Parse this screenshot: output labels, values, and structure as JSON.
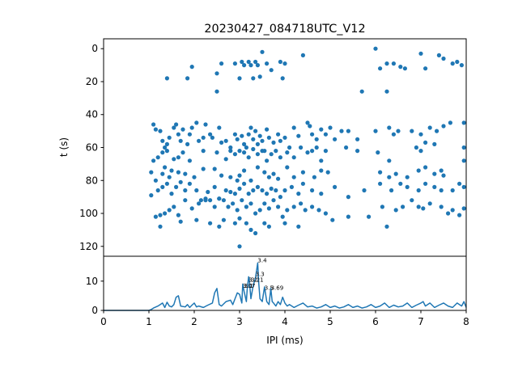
{
  "chart_data": [
    {
      "type": "scatter",
      "title": "20230427_084718UTC_V12",
      "xlabel": "",
      "ylabel": "t (s)",
      "xlim": [
        0,
        8
      ],
      "ylim": [
        126,
        -6
      ],
      "y_inverted": true,
      "yticks": [
        0,
        20,
        40,
        60,
        80,
        100,
        120
      ],
      "color": "#1f77b4",
      "points": [
        [
          1.4,
          18
        ],
        [
          1.85,
          18
        ],
        [
          1.95,
          11
        ],
        [
          2.5,
          15
        ],
        [
          2.5,
          26
        ],
        [
          2.6,
          9
        ],
        [
          2.9,
          9
        ],
        [
          3.0,
          18
        ],
        [
          3.05,
          8
        ],
        [
          3.1,
          10
        ],
        [
          3.2,
          8
        ],
        [
          3.25,
          10
        ],
        [
          3.3,
          18
        ],
        [
          3.35,
          8
        ],
        [
          3.4,
          10
        ],
        [
          3.45,
          17
        ],
        [
          3.5,
          2
        ],
        [
          3.6,
          9
        ],
        [
          3.7,
          13
        ],
        [
          3.9,
          8
        ],
        [
          3.95,
          18
        ],
        [
          4.0,
          9
        ],
        [
          4.4,
          4
        ],
        [
          5.7,
          26
        ],
        [
          6.0,
          0
        ],
        [
          6.1,
          12
        ],
        [
          6.25,
          26
        ],
        [
          6.25,
          9
        ],
        [
          6.4,
          9
        ],
        [
          6.55,
          11
        ],
        [
          6.65,
          12
        ],
        [
          7.0,
          3
        ],
        [
          7.1,
          12
        ],
        [
          7.4,
          4
        ],
        [
          7.5,
          6
        ],
        [
          7.7,
          9
        ],
        [
          7.8,
          8
        ],
        [
          7.9,
          10
        ],
        [
          1.1,
          46
        ],
        [
          1.15,
          49
        ],
        [
          1.25,
          50
        ],
        [
          1.3,
          56
        ],
        [
          1.35,
          60
        ],
        [
          1.4,
          58
        ],
        [
          1.45,
          54
        ],
        [
          1.55,
          48
        ],
        [
          1.6,
          46
        ],
        [
          1.65,
          52
        ],
        [
          1.7,
          56
        ],
        [
          1.75,
          49
        ],
        [
          1.85,
          58
        ],
        [
          1.9,
          52
        ],
        [
          1.95,
          48
        ],
        [
          2.05,
          45
        ],
        [
          2.1,
          56
        ],
        [
          2.2,
          54
        ],
        [
          2.25,
          46
        ],
        [
          2.35,
          52
        ],
        [
          2.4,
          54
        ],
        [
          2.55,
          48
        ],
        [
          2.6,
          57
        ],
        [
          2.7,
          56
        ],
        [
          2.8,
          60
        ],
        [
          2.9,
          52
        ],
        [
          2.95,
          55
        ],
        [
          3.05,
          53
        ],
        [
          3.1,
          58
        ],
        [
          3.15,
          60
        ],
        [
          3.2,
          52
        ],
        [
          3.25,
          48
        ],
        [
          3.3,
          55
        ],
        [
          3.35,
          50
        ],
        [
          3.4,
          58
        ],
        [
          3.45,
          53
        ],
        [
          3.5,
          56
        ],
        [
          3.55,
          62
        ],
        [
          3.6,
          49
        ],
        [
          3.65,
          54
        ],
        [
          3.75,
          57
        ],
        [
          3.85,
          52
        ],
        [
          3.9,
          56
        ],
        [
          4.0,
          54
        ],
        [
          4.1,
          60
        ],
        [
          4.2,
          48
        ],
        [
          4.3,
          53
        ],
        [
          4.5,
          45
        ],
        [
          4.55,
          47
        ],
        [
          4.6,
          52
        ],
        [
          4.7,
          55
        ],
        [
          4.8,
          49
        ],
        [
          4.9,
          52
        ],
        [
          5.0,
          48
        ],
        [
          5.1,
          55
        ],
        [
          5.25,
          50
        ],
        [
          5.4,
          50
        ],
        [
          5.6,
          55
        ],
        [
          6.0,
          50
        ],
        [
          6.3,
          48
        ],
        [
          6.4,
          52
        ],
        [
          6.5,
          50
        ],
        [
          6.8,
          50
        ],
        [
          7.0,
          52
        ],
        [
          7.2,
          48
        ],
        [
          7.35,
          50
        ],
        [
          7.5,
          47
        ],
        [
          7.65,
          45
        ],
        [
          7.95,
          45
        ],
        [
          1.1,
          68
        ],
        [
          1.2,
          66
        ],
        [
          1.3,
          63
        ],
        [
          1.4,
          62
        ],
        [
          1.55,
          67
        ],
        [
          1.65,
          66
        ],
        [
          1.75,
          63
        ],
        [
          1.9,
          68
        ],
        [
          2.2,
          62
        ],
        [
          2.5,
          63
        ],
        [
          2.7,
          67
        ],
        [
          2.8,
          62
        ],
        [
          2.9,
          64
        ],
        [
          3.0,
          62
        ],
        [
          3.1,
          63
        ],
        [
          3.2,
          66
        ],
        [
          3.3,
          61
        ],
        [
          3.4,
          64
        ],
        [
          3.5,
          62
        ],
        [
          3.6,
          68
        ],
        [
          3.7,
          64
        ],
        [
          3.8,
          62
        ],
        [
          3.9,
          66
        ],
        [
          4.05,
          63
        ],
        [
          4.2,
          66
        ],
        [
          4.35,
          60
        ],
        [
          4.5,
          63
        ],
        [
          4.6,
          62
        ],
        [
          4.7,
          60
        ],
        [
          4.8,
          68
        ],
        [
          4.9,
          62
        ],
        [
          5.35,
          60
        ],
        [
          5.6,
          62
        ],
        [
          6.05,
          63
        ],
        [
          6.3,
          68
        ],
        [
          6.9,
          60
        ],
        [
          7.0,
          62
        ],
        [
          7.1,
          57
        ],
        [
          7.3,
          58
        ],
        [
          7.95,
          60
        ],
        [
          1.05,
          75
        ],
        [
          1.15,
          80
        ],
        [
          1.3,
          76
        ],
        [
          1.35,
          72
        ],
        [
          1.45,
          78
        ],
        [
          1.5,
          74
        ],
        [
          1.65,
          75
        ],
        [
          1.8,
          76
        ],
        [
          2.0,
          78
        ],
        [
          2.2,
          73
        ],
        [
          2.45,
          73
        ],
        [
          2.6,
          77
        ],
        [
          2.8,
          78
        ],
        [
          2.95,
          80
        ],
        [
          3.0,
          77
        ],
        [
          3.1,
          74
        ],
        [
          3.25,
          80
        ],
        [
          3.4,
          72
        ],
        [
          3.55,
          75
        ],
        [
          3.65,
          78
        ],
        [
          3.75,
          76
        ],
        [
          3.85,
          79
        ],
        [
          4.05,
          72
        ],
        [
          4.2,
          78
        ],
        [
          4.4,
          75
        ],
        [
          4.65,
          78
        ],
        [
          4.8,
          74
        ],
        [
          4.95,
          75
        ],
        [
          6.1,
          75
        ],
        [
          6.3,
          78
        ],
        [
          6.45,
          76
        ],
        [
          6.7,
          78
        ],
        [
          6.95,
          74
        ],
        [
          7.1,
          72
        ],
        [
          7.3,
          76
        ],
        [
          7.45,
          74
        ],
        [
          7.5,
          77
        ],
        [
          7.95,
          68
        ],
        [
          1.05,
          89
        ],
        [
          1.2,
          86
        ],
        [
          1.3,
          84
        ],
        [
          1.4,
          82
        ],
        [
          1.5,
          88
        ],
        [
          1.6,
          84
        ],
        [
          1.7,
          81
        ],
        [
          1.8,
          86
        ],
        [
          1.9,
          82
        ],
        [
          2.05,
          86
        ],
        [
          2.15,
          92
        ],
        [
          2.25,
          91
        ],
        [
          2.3,
          87
        ],
        [
          2.45,
          84
        ],
        [
          2.55,
          91
        ],
        [
          2.7,
          86
        ],
        [
          2.8,
          87
        ],
        [
          2.9,
          88
        ],
        [
          3.0,
          85
        ],
        [
          3.1,
          82
        ],
        [
          3.2,
          88
        ],
        [
          3.3,
          86
        ],
        [
          3.4,
          84
        ],
        [
          3.5,
          86
        ],
        [
          3.6,
          88
        ],
        [
          3.7,
          85
        ],
        [
          3.8,
          86
        ],
        [
          3.9,
          90
        ],
        [
          4.0,
          86
        ],
        [
          4.15,
          84
        ],
        [
          4.3,
          88
        ],
        [
          4.4,
          82
        ],
        [
          4.6,
          86
        ],
        [
          4.8,
          88
        ],
        [
          5.1,
          84
        ],
        [
          5.4,
          90
        ],
        [
          5.75,
          86
        ],
        [
          6.1,
          82
        ],
        [
          6.35,
          86
        ],
        [
          6.55,
          82
        ],
        [
          6.7,
          84
        ],
        [
          6.95,
          86
        ],
        [
          7.1,
          82
        ],
        [
          7.3,
          84
        ],
        [
          7.45,
          86
        ],
        [
          7.7,
          86
        ],
        [
          7.85,
          82
        ],
        [
          7.95,
          84
        ],
        [
          1.15,
          102
        ],
        [
          1.25,
          101
        ],
        [
          1.35,
          100
        ],
        [
          1.45,
          98
        ],
        [
          1.55,
          96
        ],
        [
          1.65,
          101
        ],
        [
          1.8,
          92
        ],
        [
          1.95,
          97
        ],
        [
          2.1,
          94
        ],
        [
          2.25,
          92
        ],
        [
          2.35,
          92
        ],
        [
          2.45,
          96
        ],
        [
          2.55,
          91
        ],
        [
          2.65,
          92
        ],
        [
          2.75,
          96
        ],
        [
          2.85,
          94
        ],
        [
          2.95,
          98
        ],
        [
          3.0,
          103
        ],
        [
          3.05,
          92
        ],
        [
          3.15,
          96
        ],
        [
          3.25,
          94
        ],
        [
          3.35,
          100
        ],
        [
          3.45,
          98
        ],
        [
          3.55,
          94
        ],
        [
          3.65,
          97
        ],
        [
          3.75,
          92
        ],
        [
          3.85,
          96
        ],
        [
          3.95,
          102
        ],
        [
          4.05,
          98
        ],
        [
          4.2,
          96
        ],
        [
          4.35,
          94
        ],
        [
          4.45,
          98
        ],
        [
          4.6,
          96
        ],
        [
          4.75,
          98
        ],
        [
          4.9,
          100
        ],
        [
          5.05,
          104
        ],
        [
          5.4,
          102
        ],
        [
          5.85,
          102
        ],
        [
          6.15,
          96
        ],
        [
          6.45,
          98
        ],
        [
          6.6,
          96
        ],
        [
          6.8,
          92
        ],
        [
          6.95,
          96
        ],
        [
          7.05,
          97
        ],
        [
          7.2,
          94
        ],
        [
          7.45,
          96
        ],
        [
          7.6,
          100
        ],
        [
          7.7,
          98
        ],
        [
          7.85,
          101
        ],
        [
          7.95,
          97
        ],
        [
          1.25,
          108
        ],
        [
          1.7,
          105
        ],
        [
          2.05,
          104
        ],
        [
          2.35,
          106
        ],
        [
          2.55,
          108
        ],
        [
          2.65,
          104
        ],
        [
          2.9,
          106
        ],
        [
          3.15,
          106
        ],
        [
          3.25,
          110
        ],
        [
          3.35,
          112
        ],
        [
          3.55,
          106
        ],
        [
          3.65,
          108
        ],
        [
          4.0,
          106
        ],
        [
          4.3,
          108
        ],
        [
          6.25,
          108
        ],
        [
          3.0,
          120
        ]
      ]
    },
    {
      "type": "line",
      "title": "",
      "xlabel": "IPI (ms)",
      "ylabel": "",
      "xlim": [
        0,
        8
      ],
      "ylim": [
        0,
        18.5
      ],
      "xticks": [
        0,
        1,
        2,
        3,
        4,
        5,
        6,
        7,
        8
      ],
      "yticks": [
        0,
        10
      ],
      "color": "#1f77b4",
      "series": [
        {
          "x": [
            0,
            1.0,
            1.05,
            1.1,
            1.2,
            1.3,
            1.35,
            1.4,
            1.45,
            1.5,
            1.55,
            1.6,
            1.65,
            1.7,
            1.8,
            1.85,
            1.9,
            1.95,
            2.0,
            2.05,
            2.1,
            2.2,
            2.3,
            2.4,
            2.45,
            2.5,
            2.55,
            2.6,
            2.7,
            2.8,
            2.85,
            2.9,
            2.95,
            3.0,
            3.05,
            3.07,
            3.1,
            3.15,
            3.17,
            3.2,
            3.21,
            3.25,
            3.3,
            3.35,
            3.4,
            3.42,
            3.45,
            3.5,
            3.55,
            3.6,
            3.65,
            3.69,
            3.72,
            3.75,
            3.8,
            3.85,
            3.9,
            3.95,
            4.0,
            4.05,
            4.1,
            4.2,
            4.3,
            4.4,
            4.5,
            4.6,
            4.7,
            4.8,
            4.9,
            5.0,
            5.1,
            5.2,
            5.3,
            5.4,
            5.5,
            5.6,
            5.7,
            5.8,
            5.9,
            6.0,
            6.1,
            6.2,
            6.3,
            6.4,
            6.5,
            6.6,
            6.7,
            6.8,
            6.9,
            7.0,
            7.05,
            7.1,
            7.2,
            7.3,
            7.4,
            7.5,
            7.6,
            7.7,
            7.8,
            7.9,
            7.95,
            8.0
          ],
          "y": [
            0,
            0,
            0.3,
            0.8,
            1.5,
            2.5,
            1.0,
            2.8,
            1.5,
            1.2,
            2.0,
            4.5,
            5.0,
            1.5,
            1.2,
            2.0,
            1.0,
            1.8,
            2.5,
            1.2,
            1.5,
            1.0,
            1.8,
            2.5,
            6.0,
            7.5,
            2.0,
            1.5,
            3.0,
            3.5,
            2.0,
            4.0,
            6.0,
            5.5,
            2.5,
            9.0,
            6.5,
            3.0,
            7.5,
            11.5,
            11.0,
            4.0,
            8.5,
            11.0,
            16.2,
            10.0,
            4.0,
            3.0,
            8.0,
            3.0,
            2.0,
            7.5,
            3.0,
            2.5,
            1.5,
            3.0,
            2.0,
            4.5,
            2.5,
            1.5,
            2.0,
            1.0,
            1.8,
            2.5,
            1.2,
            1.5,
            0.8,
            1.2,
            2.0,
            1.0,
            1.5,
            0.8,
            1.2,
            2.0,
            1.0,
            1.5,
            0.8,
            1.2,
            2.0,
            1.0,
            1.5,
            2.5,
            1.0,
            1.8,
            1.2,
            1.5,
            2.5,
            1.0,
            1.8,
            2.5,
            3.0,
            1.5,
            2.5,
            1.0,
            1.8,
            2.5,
            1.5,
            1.0,
            2.5,
            1.5,
            3.0,
            1.0
          ]
        }
      ],
      "annotations": [
        {
          "text": "3.4",
          "x": 3.4,
          "y": 16.2
        },
        {
          "text": "3.3",
          "x": 3.35,
          "y": 11.5
        },
        {
          "text": "3.2",
          "x": 3.2,
          "y": 9.5
        },
        {
          "text": "3.21",
          "x": 3.25,
          "y": 9.5
        },
        {
          "text": "3.07",
          "x": 3.07,
          "y": 7.5
        },
        {
          "text": "3.1",
          "x": 3.1,
          "y": 7.5
        },
        {
          "text": "3.5",
          "x": 3.55,
          "y": 6.8
        },
        {
          "text": "3.69",
          "x": 3.69,
          "y": 6.8
        }
      ]
    }
  ]
}
